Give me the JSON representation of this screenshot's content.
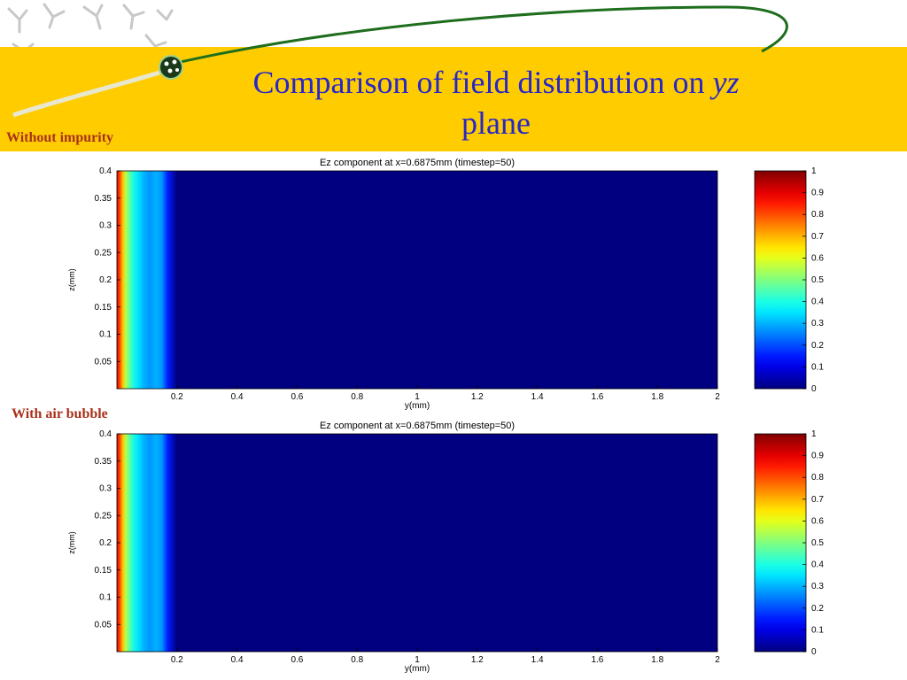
{
  "slide": {
    "title_main": "Comparison of  field distribution on ",
    "title_italic": "yz",
    "title_line2": "plane",
    "caption_top": "Without impurity",
    "caption_bottom": "With air bubble",
    "banner_color": "#ffcc00",
    "title_color": "#2727c8",
    "caption_color": "#a8321c"
  },
  "chart_data": [
    {
      "type": "heatmap",
      "title": "Ez component at x=0.6875mm (timestep=50)",
      "xlabel": "y(mm)",
      "ylabel": "z(mm)",
      "xlim": [
        0,
        2
      ],
      "ylim": [
        0,
        0.4
      ],
      "xticks": [
        "0.2",
        "0.4",
        "0.6",
        "0.8",
        "1",
        "1.2",
        "1.4",
        "1.6",
        "1.8",
        "2"
      ],
      "yticks": [
        "0.05",
        "0.1",
        "0.15",
        "0.2",
        "0.25",
        "0.3",
        "0.35",
        "0.4"
      ],
      "colorbar": {
        "min": 0,
        "max": 1,
        "ticks": [
          "0",
          "0.1",
          "0.2",
          "0.3",
          "0.4",
          "0.5",
          "0.6",
          "0.7",
          "0.8",
          "0.9",
          "1"
        ],
        "colormap": "jet"
      },
      "field_profile_y_mm": [
        0,
        0.01,
        0.02,
        0.03,
        0.05,
        0.07,
        0.09,
        0.11,
        0.13,
        0.15,
        0.17,
        0.2,
        2
      ],
      "field_profile_ez": [
        0.9,
        0.8,
        0.68,
        0.55,
        0.42,
        0.35,
        0.3,
        0.27,
        0.3,
        0.27,
        0.15,
        0.0,
        0.0
      ]
    },
    {
      "type": "heatmap",
      "title": "Ez component at x=0.6875mm (timestep=50)",
      "xlabel": "y(mm)",
      "ylabel": "z(mm)",
      "xlim": [
        0,
        2
      ],
      "ylim": [
        0,
        0.4
      ],
      "xticks": [
        "0.2",
        "0.4",
        "0.6",
        "0.8",
        "1",
        "1.2",
        "1.4",
        "1.6",
        "1.8",
        "2"
      ],
      "yticks": [
        "0.05",
        "0.1",
        "0.15",
        "0.2",
        "0.25",
        "0.3",
        "0.35",
        "0.4"
      ],
      "colorbar": {
        "min": 0,
        "max": 1,
        "ticks": [
          "0",
          "0.1",
          "0.2",
          "0.3",
          "0.4",
          "0.5",
          "0.6",
          "0.7",
          "0.8",
          "0.9",
          "1"
        ],
        "colormap": "jet"
      },
      "field_profile_y_mm": [
        0,
        0.01,
        0.02,
        0.03,
        0.05,
        0.07,
        0.09,
        0.11,
        0.13,
        0.15,
        0.17,
        0.2,
        2
      ],
      "field_profile_ez": [
        0.9,
        0.8,
        0.68,
        0.55,
        0.42,
        0.35,
        0.3,
        0.27,
        0.3,
        0.27,
        0.15,
        0.0,
        0.0
      ]
    }
  ]
}
